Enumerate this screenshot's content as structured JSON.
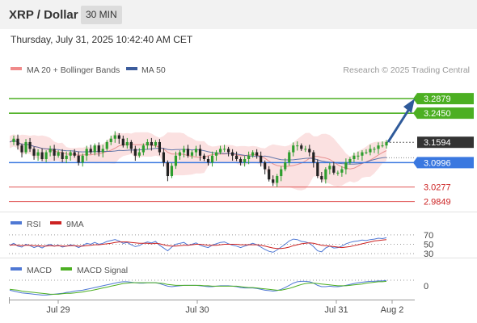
{
  "header": {
    "title": "XRP / Dollar",
    "timeframe": "30 MIN"
  },
  "timestamp": "Thursday, July 31, 2025 10:42:40 AM CET",
  "credit": "Research © 2025 Trading Central",
  "colors": {
    "resistance": "#4caf22",
    "current": "#333333",
    "pivot": "#3a78e0",
    "support": "#e05555",
    "bollinger": "#f7c9c9",
    "ma20": "#e89090",
    "ma50": "#3c5c9c",
    "up": "#2e9e2e",
    "down": "#222222",
    "arrow": "#2f5a9a",
    "rsi": "#4f78d4",
    "rsi_ma": "#cc2222",
    "macd": "#4f78d4",
    "macd_signal": "#4caf22"
  },
  "chart_data": [
    {
      "type": "candlestick",
      "legend": [
        {
          "name": "MA 20 + Bollinger Bands",
          "color": "#f08a8a"
        },
        {
          "name": "MA 50",
          "color": "#3c5c9c"
        }
      ],
      "x_ticks": [
        "Jul 29",
        "Jul 30",
        "Jul 31",
        "Aug 2"
      ],
      "ylim": [
        2.965,
        3.35
      ],
      "levels": [
        {
          "label": "3.2879",
          "value": 3.2879,
          "kind": "resistance"
        },
        {
          "label": "3.2450",
          "value": 3.245,
          "kind": "resistance"
        },
        {
          "label": "3.1594",
          "value": 3.1594,
          "kind": "current"
        },
        {
          "label": "3.0996",
          "value": 3.0996,
          "kind": "pivot"
        },
        {
          "label": "3.0277",
          "value": 3.0277,
          "kind": "support"
        },
        {
          "label": "2.9849",
          "value": 2.9849,
          "kind": "support"
        }
      ],
      "price": [
        3.16,
        3.17,
        3.15,
        3.13,
        3.16,
        3.14,
        3.12,
        3.13,
        3.11,
        3.13,
        3.14,
        3.12,
        3.13,
        3.11,
        3.12,
        3.13,
        3.12,
        3.1,
        3.12,
        3.14,
        3.13,
        3.15,
        3.13,
        3.14,
        3.16,
        3.17,
        3.18,
        3.17,
        3.15,
        3.16,
        3.14,
        3.12,
        3.13,
        3.15,
        3.16,
        3.15,
        3.16,
        3.13,
        3.1,
        3.06,
        3.09,
        3.12,
        3.13,
        3.14,
        3.12,
        3.13,
        3.14,
        3.12,
        3.11,
        3.1,
        3.12,
        3.13,
        3.14,
        3.14,
        3.13,
        3.12,
        3.11,
        3.1,
        3.11,
        3.12,
        3.13,
        3.12,
        3.1,
        3.08,
        3.05,
        3.04,
        3.06,
        3.08,
        3.1,
        3.13,
        3.15,
        3.15,
        3.14,
        3.14,
        3.13,
        3.1,
        3.06,
        3.05,
        3.08,
        3.09,
        3.07,
        3.07,
        3.08,
        3.1,
        3.11,
        3.12,
        3.12,
        3.13,
        3.13,
        3.14,
        3.14,
        3.15,
        3.15,
        3.16
      ]
    },
    {
      "type": "line",
      "title": "RSI",
      "legend": [
        {
          "name": "RSI",
          "color": "#4f78d4"
        },
        {
          "name": "9MA",
          "color": "#cc2222"
        }
      ],
      "ylim": [
        25,
        75
      ],
      "levels": [
        70,
        50,
        30
      ],
      "y_tick_labels": [
        "70",
        "50",
        "30"
      ],
      "series": [
        {
          "name": "RSI",
          "values": [
            48,
            52,
            46,
            44,
            50,
            47,
            43,
            46,
            42,
            47,
            50,
            46,
            48,
            44,
            46,
            49,
            47,
            43,
            47,
            52,
            50,
            54,
            50,
            52,
            56,
            58,
            60,
            57,
            52,
            54,
            49,
            45,
            47,
            52,
            55,
            53,
            56,
            48,
            42,
            36,
            44,
            50,
            52,
            54,
            48,
            50,
            53,
            48,
            45,
            43,
            48,
            51,
            54,
            55,
            51,
            48,
            46,
            43,
            46,
            49,
            52,
            49,
            44,
            39,
            35,
            33,
            38,
            44,
            50,
            57,
            61,
            60,
            56,
            55,
            52,
            45,
            36,
            34,
            42,
            46,
            42,
            43,
            46,
            51,
            54,
            56,
            57,
            59,
            58,
            60,
            61,
            63,
            62,
            64
          ]
        },
        {
          "name": "9MA",
          "values": [
            48,
            49,
            48,
            47,
            48,
            48,
            47,
            47,
            46,
            46,
            47,
            46,
            47,
            46,
            46,
            47,
            47,
            46,
            46,
            47,
            48,
            49,
            49,
            50,
            51,
            52,
            54,
            55,
            55,
            55,
            54,
            53,
            52,
            52,
            52,
            51,
            52,
            51,
            49,
            47,
            46,
            46,
            47,
            48,
            48,
            49,
            50,
            50,
            49,
            48,
            48,
            48,
            49,
            50,
            50,
            50,
            50,
            49,
            49,
            49,
            49,
            49,
            48,
            46,
            44,
            42,
            41,
            41,
            42,
            44,
            47,
            49,
            51,
            52,
            53,
            52,
            50,
            48,
            47,
            46,
            45,
            44,
            43,
            44,
            45,
            47,
            49,
            51,
            53,
            55,
            57,
            58,
            59,
            60
          ]
        }
      ]
    },
    {
      "type": "line",
      "title": "MACD",
      "legend": [
        {
          "name": "MACD",
          "color": "#4f78d4"
        },
        {
          "name": "MACD Signal",
          "color": "#4caf22"
        }
      ],
      "y_tick_labels": [
        "0"
      ],
      "series": [
        {
          "name": "MACD",
          "values": [
            -0.8,
            -1.0,
            -1.2,
            -1.4,
            -1.5,
            -1.6,
            -1.7,
            -1.8,
            -1.9,
            -1.9,
            -1.8,
            -1.7,
            -1.6,
            -1.5,
            -1.3,
            -1.2,
            -1.0,
            -0.9,
            -0.8,
            -0.6,
            -0.4,
            -0.2,
            0.0,
            0.2,
            0.4,
            0.6,
            0.8,
            1.0,
            1.1,
            1.1,
            1.0,
            0.9,
            0.8,
            0.8,
            0.9,
            0.9,
            0.9,
            0.7,
            0.4,
            0.1,
            0.0,
            0.1,
            0.2,
            0.3,
            0.3,
            0.3,
            0.3,
            0.2,
            0.1,
            0.0,
            0.0,
            0.1,
            0.2,
            0.2,
            0.2,
            0.1,
            0.0,
            -0.2,
            -0.3,
            -0.3,
            -0.3,
            -0.4,
            -0.6,
            -0.8,
            -0.9,
            -1.0,
            -0.9,
            -0.6,
            -0.2,
            0.3,
            0.8,
            1.1,
            1.2,
            1.2,
            1.1,
            0.8,
            0.3,
            0.0,
            0.0,
            0.1,
            0.0,
            0.0,
            0.1,
            0.3,
            0.5,
            0.7,
            0.9,
            1.0,
            1.1,
            1.2,
            1.2,
            1.3,
            1.3,
            1.4
          ]
        },
        {
          "name": "MACD Signal",
          "values": [
            -0.6,
            -0.7,
            -0.8,
            -1.0,
            -1.1,
            -1.2,
            -1.3,
            -1.4,
            -1.5,
            -1.6,
            -1.7,
            -1.7,
            -1.7,
            -1.6,
            -1.5,
            -1.5,
            -1.4,
            -1.3,
            -1.2,
            -1.0,
            -0.9,
            -0.7,
            -0.5,
            -0.3,
            -0.1,
            0.1,
            0.3,
            0.5,
            0.7,
            0.8,
            0.9,
            0.9,
            0.9,
            0.9,
            0.9,
            0.9,
            0.9,
            0.8,
            0.7,
            0.5,
            0.4,
            0.3,
            0.3,
            0.3,
            0.3,
            0.3,
            0.3,
            0.3,
            0.2,
            0.2,
            0.1,
            0.1,
            0.1,
            0.1,
            0.1,
            0.1,
            0.1,
            0.0,
            -0.1,
            -0.2,
            -0.2,
            -0.3,
            -0.4,
            -0.5,
            -0.6,
            -0.7,
            -0.8,
            -0.8,
            -0.6,
            -0.4,
            -0.1,
            0.2,
            0.5,
            0.7,
            0.8,
            0.8,
            0.7,
            0.6,
            0.5,
            0.4,
            0.3,
            0.2,
            0.2,
            0.2,
            0.3,
            0.4,
            0.5,
            0.6,
            0.8,
            0.9,
            1.0,
            1.1,
            1.1,
            1.2
          ]
        }
      ]
    }
  ]
}
